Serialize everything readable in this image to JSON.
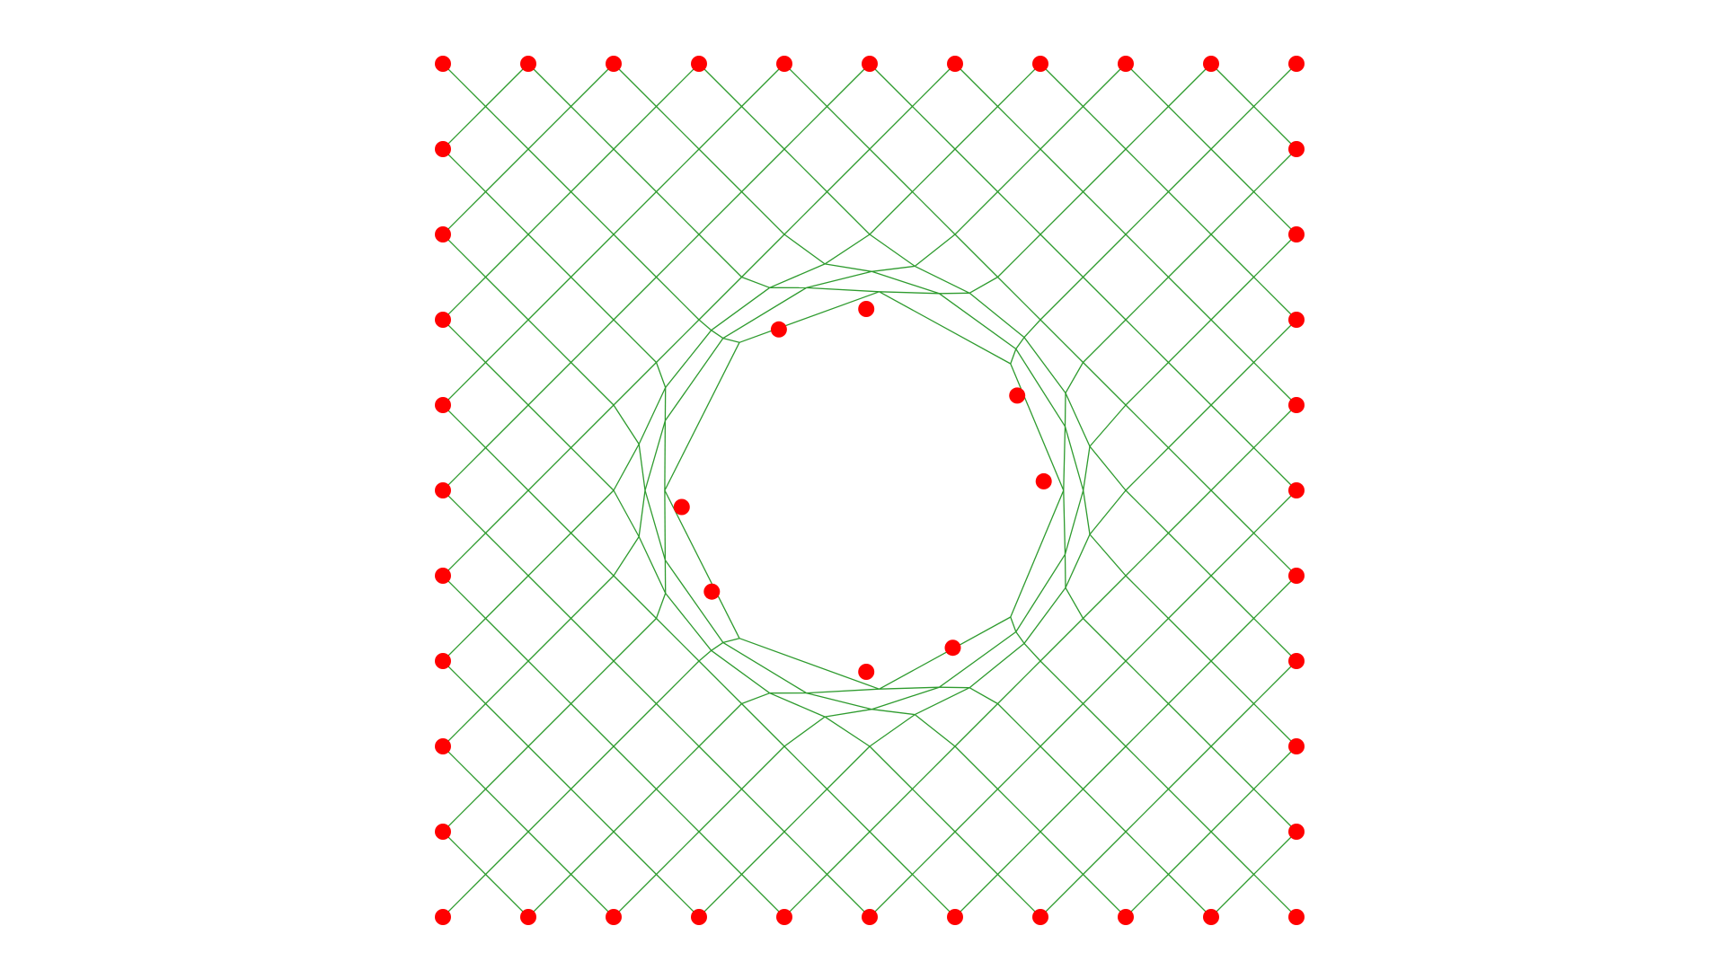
{
  "diagram": {
    "type": "mesh",
    "grid": {
      "columns": 11,
      "rows": 11
    },
    "hole": {
      "present": true,
      "shape": "circle"
    },
    "colors": {
      "background": "#ffffff",
      "edge": "#2e9b2e",
      "node": "#ff0000"
    },
    "boundary_nodes": {
      "count": 40
    },
    "hole_nodes": {
      "count": 8
    }
  }
}
